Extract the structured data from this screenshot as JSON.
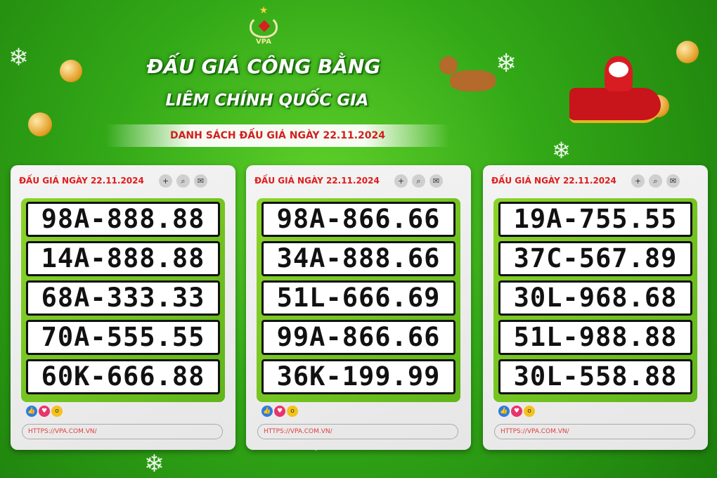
{
  "logo": {
    "text": "VPA"
  },
  "header": {
    "title_line1": "ĐẤU GIÁ CÔNG BẰNG",
    "title_line2": "LIÊM CHÍNH QUỐC GIA",
    "subtitle": "DANH SÁCH ĐẤU GIÁ NGÀY 22.11.2024"
  },
  "colors": {
    "background": "#32a817",
    "accent_red": "#e01c1c",
    "plate_frame": "#6fc21f"
  },
  "cards": [
    {
      "heading": "ĐẤU GIÁ NGÀY 22.11.2024",
      "plates": [
        "98A-888.88",
        "14A-888.88",
        "68A-333.33",
        "70A-555.55",
        "60K-666.88"
      ],
      "url": "HTTPS://VPA.COM.VN/"
    },
    {
      "heading": "ĐẤU GIÁ NGÀY 22.11.2024",
      "plates": [
        "98A-866.66",
        "34A-888.66",
        "51L-666.69",
        "99A-866.66",
        "36K-199.99"
      ],
      "url": "HTTPS://VPA.COM.VN/"
    },
    {
      "heading": "ĐẤU GIÁ NGÀY 22.11.2024",
      "plates": [
        "19A-755.55",
        "37C-567.89",
        "30L-968.68",
        "51L-988.88",
        "30L-558.88"
      ],
      "url": "HTTPS://VPA.COM.VN/"
    }
  ],
  "icons": {
    "buttons": [
      "plus-icon",
      "search-icon",
      "messenger-icon"
    ],
    "reactions": [
      "like-icon",
      "heart-icon",
      "wow-icon"
    ]
  }
}
